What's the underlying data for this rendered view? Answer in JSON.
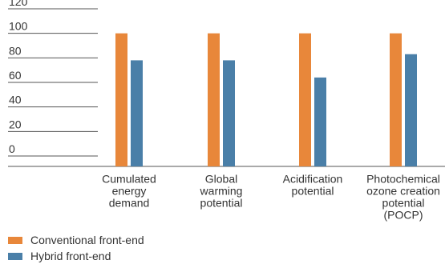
{
  "chart_data": {
    "type": "bar",
    "title": "",
    "xlabel": "",
    "ylabel": "",
    "ylim": [
      0,
      120
    ],
    "y_ticks": [
      "120",
      "100",
      "80",
      "60",
      "40",
      "20",
      "0"
    ],
    "categories": [
      [
        "Cumulated",
        "energy",
        "demand"
      ],
      [
        "Global",
        "warming",
        "potential"
      ],
      [
        "Acidification",
        "potential"
      ],
      [
        "Photochemical",
        "ozone creation",
        "potential",
        "(POCP)"
      ]
    ],
    "series": [
      {
        "name": "Conventional front-end",
        "color": "#E8873A",
        "values": [
          100,
          100,
          100,
          100
        ]
      },
      {
        "name": "Hybrid front-end",
        "color": "#4A7FA8",
        "values": [
          78,
          78,
          64,
          83
        ]
      }
    ],
    "legend": "bottom-left",
    "grid": true
  }
}
